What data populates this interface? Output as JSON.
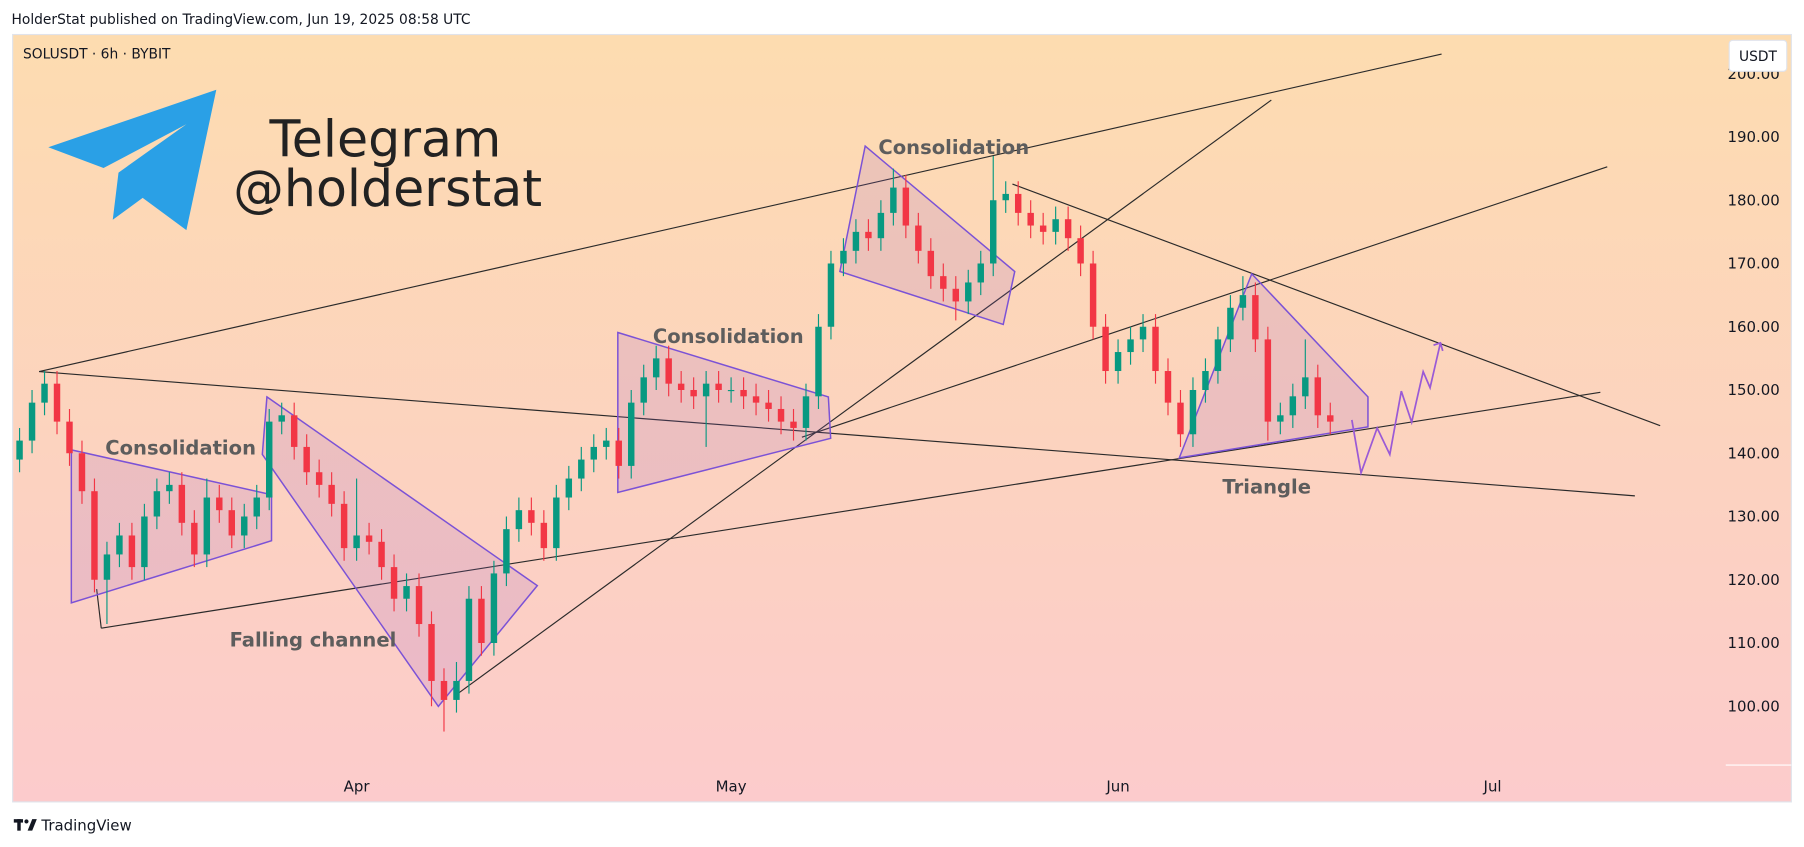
{
  "header": {
    "published": "HolderStat published on TradingView.com, Jun 19, 2025 08:58 UTC",
    "brand": "TradingView"
  },
  "chart_data": {
    "type": "candlestick",
    "symbol": "SOLUSDT · 6h · BYBIT",
    "currency": "USDT",
    "watermark": [
      "Telegram",
      "@holderstat"
    ],
    "annotations": [
      "Consolidation",
      "Falling channel",
      "Consolidation",
      "Consolidation",
      "Triangle"
    ],
    "up_color": "#089981",
    "down_color": "#f23645",
    "grid": false,
    "ylim": [
      90.7,
      206.2
    ],
    "yticks": [
      {
        "value": 100,
        "label": "100.00"
      },
      {
        "value": 110,
        "label": "110.00"
      },
      {
        "value": 120,
        "label": "120.00"
      },
      {
        "value": 130,
        "label": "130.00"
      },
      {
        "value": 140,
        "label": "140.00"
      },
      {
        "value": 150,
        "label": "150.00"
      },
      {
        "value": 160,
        "label": "160.00"
      },
      {
        "value": 170,
        "label": "170.00"
      },
      {
        "value": 180,
        "label": "180.00"
      },
      {
        "value": 190,
        "label": "190.00"
      },
      {
        "value": 200,
        "label": "200.00"
      }
    ],
    "categories": [
      null,
      null,
      null,
      null,
      null,
      null,
      null,
      null,
      null,
      null,
      null,
      null,
      null,
      null,
      null,
      null,
      null,
      null,
      null,
      null,
      null,
      null,
      null,
      null,
      null,
      null,
      null,
      "Apr",
      null,
      null,
      null,
      null,
      null,
      null,
      null,
      null,
      null,
      null,
      null,
      null,
      null,
      null,
      null,
      null,
      null,
      null,
      null,
      null,
      null,
      null,
      null,
      null,
      null,
      null,
      null,
      null,
      null,
      "May",
      null,
      null,
      null,
      null,
      null,
      null,
      null,
      null,
      null,
      null,
      null,
      null,
      null,
      null,
      null,
      null,
      null,
      null,
      null,
      null,
      null,
      null,
      null,
      null,
      null,
      null,
      null,
      null,
      null,
      null,
      "Jun",
      null,
      null,
      null,
      null,
      null,
      null,
      null,
      null,
      null,
      null,
      null,
      null,
      null,
      null,
      null,
      null,
      null,
      null,
      null,
      null,
      null,
      null,
      null,
      null,
      null,
      null,
      null,
      null,
      null,
      "Jul"
    ],
    "open": [
      139,
      142,
      148,
      151,
      145,
      140,
      134,
      120,
      124,
      127,
      122,
      130,
      134,
      135,
      129,
      124,
      133,
      131,
      127,
      130,
      133,
      145,
      146,
      141,
      137,
      135,
      132,
      125,
      127,
      126,
      122,
      117,
      119,
      113,
      104,
      101,
      104,
      117,
      110,
      121,
      128,
      131,
      129,
      125,
      133,
      136,
      139,
      141,
      142,
      138,
      148,
      152,
      155,
      151,
      150,
      149,
      151,
      150,
      150,
      149,
      148,
      147,
      145,
      144,
      149,
      160,
      170,
      172,
      175,
      174,
      178,
      182,
      176,
      172,
      168,
      166,
      164,
      167,
      170,
      180,
      181,
      178,
      176,
      175,
      177,
      174,
      170,
      160,
      153,
      156,
      158,
      160,
      153,
      148,
      143,
      150,
      153,
      158,
      163,
      165,
      158,
      145,
      146,
      149,
      152,
      146,
      null,
      null,
      null,
      null,
      null,
      null,
      null,
      null,
      null,
      null,
      null,
      null,
      null
    ],
    "high": [
      144,
      150,
      153,
      153,
      147,
      142,
      136,
      126,
      129,
      129,
      132,
      136,
      137,
      137,
      131,
      136,
      135,
      133,
      132,
      135,
      147,
      148,
      148,
      143,
      139,
      137,
      134,
      136,
      129,
      128,
      124,
      121,
      121,
      115,
      106,
      107,
      119,
      119,
      123,
      130,
      133,
      133,
      131,
      135,
      138,
      141,
      143,
      144,
      144,
      150,
      154,
      157,
      157,
      153,
      152,
      153,
      153,
      152,
      152,
      151,
      150,
      149,
      147,
      151,
      162,
      172,
      174,
      177,
      177,
      180,
      185,
      184,
      178,
      174,
      170,
      168,
      169,
      172,
      187,
      183,
      183,
      180,
      178,
      179,
      179,
      176,
      172,
      162,
      158,
      160,
      162,
      162,
      155,
      150,
      152,
      155,
      160,
      165,
      168,
      167,
      160,
      148,
      151,
      158,
      154,
      148,
      null,
      null,
      null,
      null,
      null,
      null,
      null,
      null,
      null,
      null,
      null,
      null,
      null
    ],
    "low": [
      137,
      140,
      146,
      143,
      138,
      132,
      118,
      113,
      122,
      120,
      120,
      128,
      132,
      127,
      122,
      122,
      129,
      125,
      125,
      128,
      131,
      143,
      139,
      135,
      133,
      130,
      123,
      123,
      124,
      120,
      115,
      115,
      111,
      100,
      96,
      99,
      102,
      108,
      108,
      119,
      126,
      127,
      123,
      123,
      131,
      134,
      137,
      139,
      136,
      136,
      146,
      150,
      149,
      148,
      147,
      141,
      148,
      148,
      147,
      146,
      145,
      143,
      142,
      142,
      147,
      158,
      168,
      170,
      172,
      172,
      176,
      174,
      170,
      166,
      164,
      161,
      162,
      165,
      168,
      178,
      176,
      174,
      173,
      173,
      172,
      168,
      158,
      151,
      151,
      154,
      156,
      151,
      146,
      141,
      141,
      148,
      151,
      156,
      161,
      156,
      142,
      143,
      144,
      147,
      144,
      143,
      null,
      null,
      null,
      null,
      null,
      null,
      null,
      null,
      null,
      null,
      null,
      null,
      null
    ],
    "close": [
      142,
      148,
      151,
      145,
      140,
      134,
      120,
      124,
      127,
      122,
      130,
      134,
      135,
      129,
      124,
      133,
      131,
      127,
      130,
      133,
      145,
      146,
      141,
      137,
      135,
      132,
      125,
      127,
      126,
      122,
      117,
      119,
      113,
      104,
      101,
      104,
      117,
      110,
      121,
      128,
      131,
      129,
      125,
      133,
      136,
      139,
      141,
      142,
      138,
      148,
      152,
      155,
      151,
      150,
      149,
      151,
      150,
      150,
      149,
      148,
      147,
      145,
      144,
      149,
      160,
      170,
      172,
      175,
      174,
      178,
      182,
      176,
      172,
      168,
      166,
      164,
      167,
      170,
      180,
      181,
      178,
      176,
      175,
      177,
      174,
      170,
      160,
      153,
      156,
      158,
      160,
      153,
      148,
      143,
      150,
      153,
      158,
      163,
      165,
      158,
      145,
      146,
      149,
      152,
      146,
      145,
      null,
      null,
      null,
      null,
      null,
      null,
      null,
      null,
      null,
      null,
      null,
      null,
      null
    ]
  }
}
